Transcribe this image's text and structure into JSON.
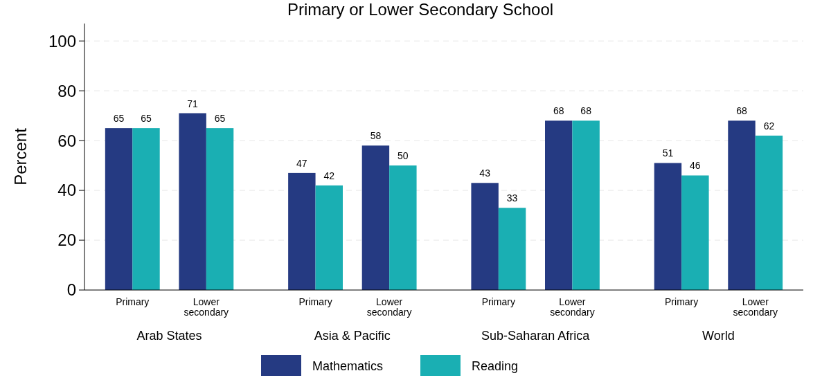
{
  "chart_data": {
    "type": "bar",
    "title": "Primary or Lower Secondary School",
    "ylabel": "Percent",
    "categories": [
      "Primary",
      "Lower secondary",
      "Primary",
      "Lower secondary",
      "Primary",
      "Lower secondary",
      "Primary",
      "Lower secondary"
    ],
    "series": [
      {
        "name": "Mathematics",
        "color": "#253a82",
        "values": [
          65,
          71,
          47,
          58,
          43,
          68,
          51,
          68
        ]
      },
      {
        "name": "Reading",
        "color": "#1aafb3",
        "values": [
          65,
          65,
          42,
          50,
          33,
          68,
          46,
          62
        ]
      }
    ],
    "annotations": [
      "Arab States",
      "Asia & Pacific",
      "Sub-Saharan Africa",
      "World"
    ],
    "ylim": [
      0,
      107
    ],
    "yticks": [
      0,
      20,
      40,
      60,
      80,
      100
    ],
    "grid": "y",
    "data_labels": true,
    "legend": "bottom"
  }
}
